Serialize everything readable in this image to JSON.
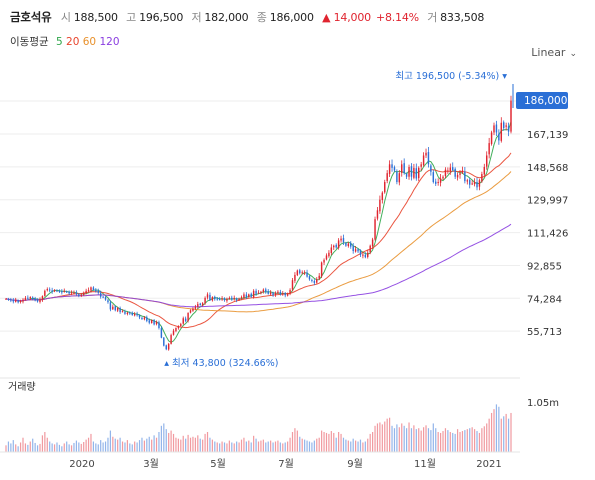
{
  "header": {
    "name": "금호석유",
    "open_label": "시",
    "open": "188,500",
    "high_label": "고",
    "high": "196,500",
    "low_label": "저",
    "low": "182,000",
    "close_label": "종",
    "close": "186,000",
    "change": "▲ 14,000",
    "change_pct": "+8.14%",
    "volume_label": "거",
    "volume": "833,508"
  },
  "moving_avg": {
    "title": "이동평균",
    "periods": [
      {
        "label": "5",
        "color": "#2ea64a"
      },
      {
        "label": "20",
        "color": "#e8442c"
      },
      {
        "label": "60",
        "color": "#e8912c"
      },
      {
        "label": "120",
        "color": "#8a3ee0"
      }
    ]
  },
  "scale_selector": {
    "label": "Linear",
    "icon": "chevron-down-icon"
  },
  "chart_data": {
    "type": "candlestick",
    "y_ticks": [
      "167,139",
      "148,568",
      "129,997",
      "111,426",
      "92,855",
      "74,284",
      "55,713"
    ],
    "y_tick_values": [
      167139,
      148568,
      129997,
      111426,
      92855,
      74284,
      55713
    ],
    "x_ticks": [
      "2020",
      "3월",
      "5월",
      "7월",
      "9월",
      "11월",
      "2021"
    ],
    "current_price_label": "186,000",
    "current_price": 186000,
    "max_annotation": "최고 196,500 (-5.34%)",
    "max_value": 196500,
    "min_annotation": "최저 43,800 (324.66%)",
    "min_value": 43800,
    "volume_title": "거래량",
    "volume_tick": "1.05m",
    "up_color": "#e0242f",
    "down_color": "#2a6fd6",
    "series": [
      {
        "name": "가격",
        "values": [
          74000,
          73500,
          73000,
          72500,
          73200,
          72000,
          72800,
          73500,
          74500,
          74000,
          75000,
          74200,
          73000,
          72500,
          73500,
          75500,
          78500,
          79500,
          78800,
          78000,
          79000,
          78500,
          78200,
          77600,
          78400,
          78000,
          77000,
          77800,
          77500,
          76500,
          75800,
          76400,
          77200,
          78500,
          79000,
          80500,
          79000,
          78200,
          77400,
          75200,
          74800,
          73500,
          72100,
          68000,
          69500,
          67500,
          68800,
          66500,
          67000,
          65500,
          66200,
          65800,
          64800,
          65500,
          64700,
          63500,
          62500,
          63500,
          61500,
          60500,
          62000,
          59500,
          61000,
          57500,
          52000,
          47500,
          45500,
          48500,
          53500,
          56000,
          57500,
          58500,
          59700,
          63000,
          61500,
          66000,
          67500,
          68500,
          69500,
          71000,
          70500,
          71500,
          74500,
          76500,
          73200,
          75000,
          73800,
          74000,
          73500,
          74200,
          73200,
          74000,
          74500,
          73500,
          74500,
          73200,
          74000,
          75000,
          76500,
          75000,
          76500,
          75200,
          78500,
          76800,
          77500,
          78000,
          79200,
          78000,
          76800,
          77500,
          76000,
          77500,
          78000,
          76500,
          77000,
          76000,
          76800,
          79000,
          84500,
          87500,
          90000,
          88500,
          89000,
          88800,
          86500,
          85000,
          84200,
          83000,
          85000,
          87000,
          94500,
          96000,
          98500,
          100000,
          103000,
          104000,
          103000,
          107000,
          108000,
          106000,
          104000,
          105200,
          103500,
          101000,
          102000,
          100800,
          98800,
          99000,
          97500,
          100000,
          104000,
          107500,
          119000,
          124000,
          130000,
          134000,
          140000,
          145000,
          150000,
          148000,
          146500,
          140000,
          145000,
          150000,
          145000,
          143000,
          148500,
          143000,
          148000,
          142000,
          148000,
          150000,
          155000,
          156500,
          150000,
          145800,
          140000,
          139000,
          140000,
          142000,
          143000,
          147000,
          146500,
          148200,
          146800,
          143000,
          144000,
          145000,
          146500,
          140500,
          141000,
          138500,
          139200,
          140000,
          137000,
          141000,
          144500,
          148500,
          155000,
          162000,
          168000,
          172000,
          168000,
          163500,
          173500,
          170500,
          172000,
          168500,
          186000
        ]
      },
      {
        "name": "거래량",
        "values": [
          0.14,
          0.22,
          0.18,
          0.25,
          0.16,
          0.12,
          0.2,
          0.3,
          0.18,
          0.15,
          0.22,
          0.28,
          0.19,
          0.14,
          0.17,
          0.35,
          0.42,
          0.3,
          0.22,
          0.18,
          0.16,
          0.2,
          0.15,
          0.12,
          0.18,
          0.22,
          0.16,
          0.14,
          0.19,
          0.24,
          0.2,
          0.17,
          0.21,
          0.26,
          0.3,
          0.38,
          0.22,
          0.18,
          0.16,
          0.25,
          0.2,
          0.22,
          0.3,
          0.45,
          0.32,
          0.28,
          0.26,
          0.3,
          0.22,
          0.2,
          0.25,
          0.18,
          0.16,
          0.22,
          0.2,
          0.25,
          0.3,
          0.24,
          0.28,
          0.32,
          0.26,
          0.35,
          0.3,
          0.42,
          0.55,
          0.6,
          0.48,
          0.4,
          0.45,
          0.38,
          0.3,
          0.28,
          0.26,
          0.34,
          0.28,
          0.36,
          0.3,
          0.32,
          0.3,
          0.35,
          0.28,
          0.26,
          0.38,
          0.42,
          0.3,
          0.26,
          0.22,
          0.2,
          0.18,
          0.22,
          0.2,
          0.18,
          0.24,
          0.2,
          0.18,
          0.22,
          0.2,
          0.26,
          0.3,
          0.22,
          0.24,
          0.2,
          0.34,
          0.28,
          0.22,
          0.24,
          0.26,
          0.2,
          0.22,
          0.24,
          0.2,
          0.22,
          0.24,
          0.2,
          0.18,
          0.2,
          0.22,
          0.3,
          0.42,
          0.5,
          0.45,
          0.32,
          0.28,
          0.26,
          0.24,
          0.22,
          0.2,
          0.24,
          0.28,
          0.3,
          0.45,
          0.42,
          0.4,
          0.38,
          0.44,
          0.4,
          0.3,
          0.42,
          0.38,
          0.3,
          0.26,
          0.24,
          0.22,
          0.28,
          0.24,
          0.22,
          0.26,
          0.2,
          0.22,
          0.28,
          0.38,
          0.42,
          0.55,
          0.6,
          0.62,
          0.58,
          0.64,
          0.7,
          0.72,
          0.55,
          0.5,
          0.58,
          0.52,
          0.6,
          0.55,
          0.5,
          0.62,
          0.5,
          0.56,
          0.48,
          0.5,
          0.45,
          0.52,
          0.56,
          0.5,
          0.46,
          0.6,
          0.5,
          0.42,
          0.4,
          0.44,
          0.5,
          0.46,
          0.42,
          0.4,
          0.38,
          0.48,
          0.42,
          0.44,
          0.46,
          0.48,
          0.5,
          0.52,
          0.48,
          0.44,
          0.4,
          0.5,
          0.54,
          0.6,
          0.7,
          0.82,
          0.9,
          1.0,
          0.95,
          0.7,
          0.75,
          0.8,
          0.7,
          0.82
        ]
      }
    ]
  }
}
